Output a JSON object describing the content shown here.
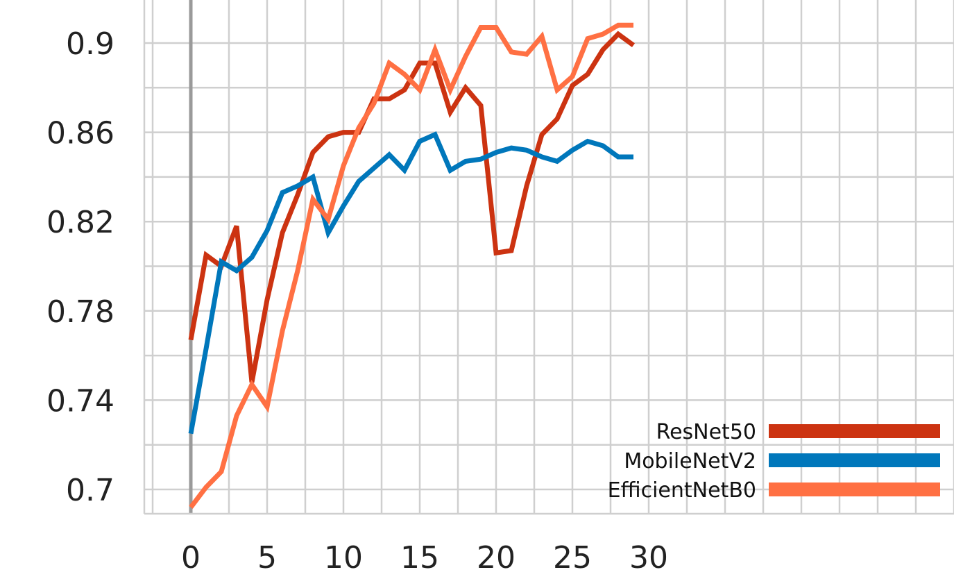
{
  "chart_data": {
    "type": "line",
    "title": "",
    "xlabel": "",
    "ylabel": "",
    "xlim": [
      -3,
      50
    ],
    "ylim": [
      0.689,
      0.918
    ],
    "x_ticks": [
      0,
      5,
      10,
      15,
      20,
      25,
      30
    ],
    "y_ticks": [
      0.7,
      0.74,
      0.78,
      0.82,
      0.86,
      0.9
    ],
    "grid": true,
    "legend_position": "bottom-right",
    "x": [
      0,
      1,
      2,
      3,
      4,
      5,
      6,
      7,
      8,
      9,
      10,
      11,
      12,
      13,
      14,
      15,
      16,
      17,
      18,
      19,
      20,
      21,
      22,
      23,
      24,
      25,
      26,
      27,
      28,
      29
    ],
    "series": [
      {
        "name": "ResNet50",
        "color": "#cc3311",
        "values": [
          0.767,
          0.805,
          0.8,
          0.818,
          0.748,
          0.785,
          0.815,
          0.832,
          0.851,
          0.858,
          0.86,
          0.86,
          0.875,
          0.875,
          0.879,
          0.891,
          0.891,
          0.869,
          0.88,
          0.872,
          0.806,
          0.807,
          0.836,
          0.859,
          0.866,
          0.881,
          0.886,
          0.897,
          0.904,
          0.899
        ]
      },
      {
        "name": "MobileNetV2",
        "color": "#0077bb",
        "values": [
          0.725,
          0.763,
          0.802,
          0.798,
          0.804,
          0.816,
          0.833,
          0.836,
          0.84,
          0.815,
          0.827,
          0.838,
          0.844,
          0.85,
          0.843,
          0.856,
          0.859,
          0.843,
          0.847,
          0.848,
          0.851,
          0.853,
          0.852,
          0.849,
          0.847,
          0.852,
          0.856,
          0.854,
          0.849,
          0.849
        ]
      },
      {
        "name": "EfficientNetB0",
        "color": "#ff7043",
        "values": [
          0.692,
          0.701,
          0.708,
          0.733,
          0.747,
          0.737,
          0.771,
          0.798,
          0.83,
          0.821,
          0.845,
          0.862,
          0.873,
          0.891,
          0.886,
          0.879,
          0.897,
          0.879,
          0.894,
          0.907,
          0.907,
          0.896,
          0.895,
          0.903,
          0.879,
          0.885,
          0.902,
          0.904,
          0.908,
          0.908
        ]
      }
    ]
  }
}
